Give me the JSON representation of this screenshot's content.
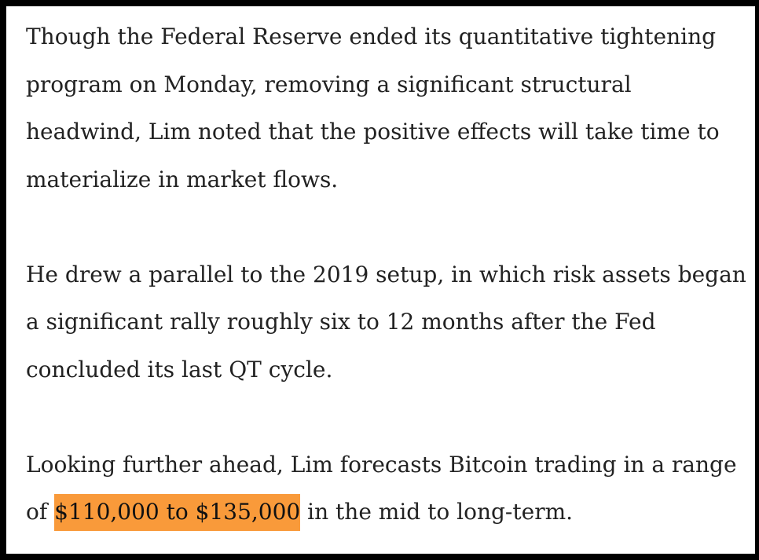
{
  "paragraphs": [
    {
      "lines": [
        "Though the Federal Reserve ended its quantitative tightening",
        "program on Monday, removing a significant structural",
        "headwind, Lim noted that the positive effects will take time to",
        "materialize in market flows."
      ]
    },
    {
      "lines": [
        "He drew a parallel to the 2019 setup, in which risk assets began",
        "a significant rally roughly six to 12 months after the Fed",
        "concluded its last QT cycle."
      ]
    },
    {
      "lines": [
        "Looking further ahead, Lim forecasts Bitcoin trading in a range"
      ],
      "last_line": {
        "before": "of ",
        "highlight": "$110,000 to $135,000",
        "after": " in the mid to long-term."
      }
    }
  ]
}
